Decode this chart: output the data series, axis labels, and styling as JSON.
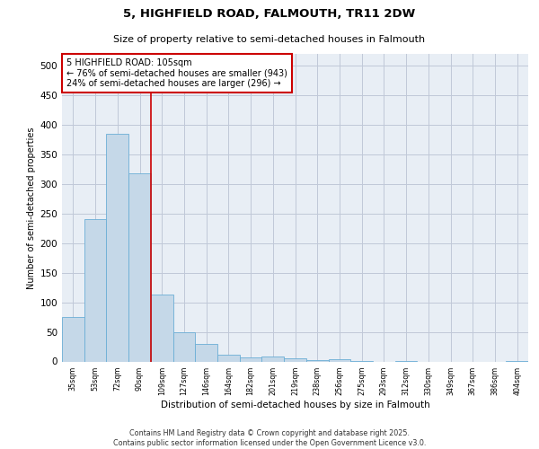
{
  "title_line1": "5, HIGHFIELD ROAD, FALMOUTH, TR11 2DW",
  "title_line2": "Size of property relative to semi-detached houses in Falmouth",
  "xlabel": "Distribution of semi-detached houses by size in Falmouth",
  "ylabel": "Number of semi-detached properties",
  "categories": [
    "35sqm",
    "53sqm",
    "72sqm",
    "90sqm",
    "109sqm",
    "127sqm",
    "146sqm",
    "164sqm",
    "182sqm",
    "201sqm",
    "219sqm",
    "238sqm",
    "256sqm",
    "275sqm",
    "293sqm",
    "312sqm",
    "330sqm",
    "349sqm",
    "367sqm",
    "386sqm",
    "404sqm"
  ],
  "values": [
    75,
    240,
    385,
    318,
    113,
    50,
    29,
    12,
    7,
    9,
    6,
    3,
    4,
    1,
    0,
    1,
    0,
    0,
    0,
    0,
    1
  ],
  "bar_color": "#c5d8e8",
  "bar_edge_color": "#6baed6",
  "grid_color": "#c0c8d8",
  "bg_color": "#e8eef5",
  "property_line_x": 3.5,
  "property_line_color": "#cc0000",
  "annotation_line1": "5 HIGHFIELD ROAD: 105sqm",
  "annotation_line2": "← 76% of semi-detached houses are smaller (943)",
  "annotation_line3": "24% of semi-detached houses are larger (296) →",
  "annotation_box_color": "#ffffff",
  "annotation_border_color": "#cc0000",
  "footer_text": "Contains HM Land Registry data © Crown copyright and database right 2025.\nContains public sector information licensed under the Open Government Licence v3.0.",
  "ylim": [
    0,
    520
  ],
  "yticks": [
    0,
    50,
    100,
    150,
    200,
    250,
    300,
    350,
    400,
    450,
    500
  ]
}
